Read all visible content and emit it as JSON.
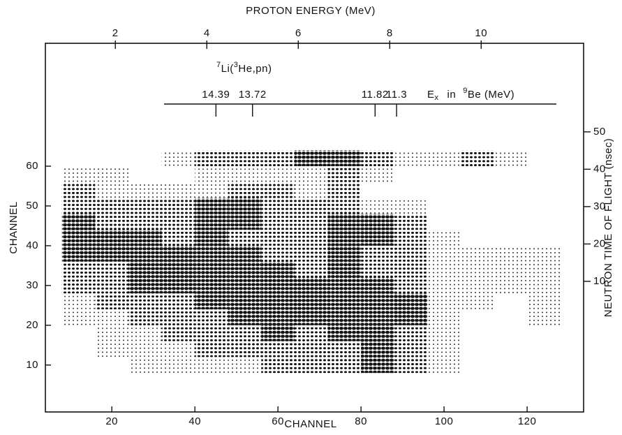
{
  "chart_data": {
    "type": "heatmap",
    "x_label": "CHANNEL",
    "y_label": "CHANNEL",
    "x2_label": "PROTON ENERGY (MeV)",
    "y2_label": "NEUTRON TIME OF FLIGHT (nsec)",
    "xlim": [
      4,
      133.6
    ],
    "xticks": [
      20,
      40,
      60,
      80,
      100,
      120
    ],
    "ylim": [
      -1.8,
      90.9
    ],
    "yticks": [
      10,
      20,
      30,
      40,
      50,
      60
    ],
    "x2lim": [
      0.47,
      12.24
    ],
    "x2ticks": [
      2,
      4,
      6,
      8,
      10
    ],
    "y2lim": [
      -24.95,
      73.7
    ],
    "y2ticks": [
      10,
      20,
      30,
      40,
      50
    ],
    "reaction": {
      "mass": "7",
      "target": "Li(",
      "projectile_mass": "3",
      "rest": "He,pn)"
    },
    "ex_label": {
      "symbol": "E",
      "subscript": "x",
      "word": "in",
      "mass": "9",
      "rest": "Be (MeV)"
    },
    "ex_markers": [
      {
        "ex": 14.39,
        "proton_energy": 4.2
      },
      {
        "ex": 13.72,
        "proton_energy": 5.0
      },
      {
        "ex": 11.82,
        "proton_energy": 7.68
      },
      {
        "ex": 11.3,
        "proton_energy": 8.15
      }
    ],
    "color": "#111111",
    "density": {
      "x": [
        12,
        20,
        28,
        36,
        44,
        52,
        60,
        68,
        76,
        84,
        92,
        100,
        108,
        116,
        124
      ],
      "y": [
        62,
        58,
        54,
        50,
        46,
        42,
        38,
        34,
        30,
        26,
        22,
        18,
        14,
        10
      ],
      "values": [
        [
          0,
          0,
          0,
          1,
          2,
          2,
          2,
          3,
          3,
          2,
          1,
          1,
          2,
          1,
          0
        ],
        [
          1,
          1,
          0,
          0,
          1,
          1,
          1,
          1,
          2,
          1,
          0,
          0,
          0,
          0,
          0
        ],
        [
          2,
          1,
          1,
          1,
          1,
          2,
          2,
          1,
          2,
          0,
          0,
          0,
          0,
          0,
          0
        ],
        [
          2,
          2,
          2,
          2,
          3,
          3,
          2,
          2,
          2,
          1,
          1,
          0,
          0,
          0,
          0
        ],
        [
          3,
          2,
          2,
          2,
          3,
          3,
          2,
          2,
          3,
          3,
          2,
          0,
          0,
          0,
          0
        ],
        [
          3,
          3,
          3,
          2,
          3,
          2,
          2,
          2,
          3,
          3,
          2,
          1,
          0,
          0,
          0
        ],
        [
          3,
          3,
          3,
          3,
          3,
          3,
          2,
          2,
          3,
          2,
          2,
          1,
          1,
          1,
          1
        ],
        [
          2,
          2,
          3,
          3,
          3,
          3,
          3,
          2,
          3,
          2,
          2,
          1,
          1,
          1,
          1
        ],
        [
          2,
          2,
          3,
          3,
          3,
          3,
          3,
          3,
          3,
          3,
          2,
          1,
          1,
          1,
          1
        ],
        [
          1,
          2,
          2,
          2,
          3,
          3,
          3,
          3,
          3,
          3,
          3,
          1,
          1,
          0,
          1
        ],
        [
          1,
          1,
          2,
          2,
          2,
          3,
          3,
          3,
          3,
          3,
          3,
          1,
          0,
          0,
          1
        ],
        [
          0,
          1,
          1,
          2,
          2,
          2,
          3,
          2,
          3,
          3,
          2,
          1,
          0,
          0,
          0
        ],
        [
          0,
          1,
          1,
          1,
          2,
          2,
          2,
          2,
          2,
          3,
          2,
          1,
          0,
          0,
          0
        ],
        [
          0,
          0,
          1,
          1,
          1,
          1,
          2,
          2,
          2,
          3,
          2,
          1,
          0,
          0,
          0
        ]
      ]
    }
  }
}
